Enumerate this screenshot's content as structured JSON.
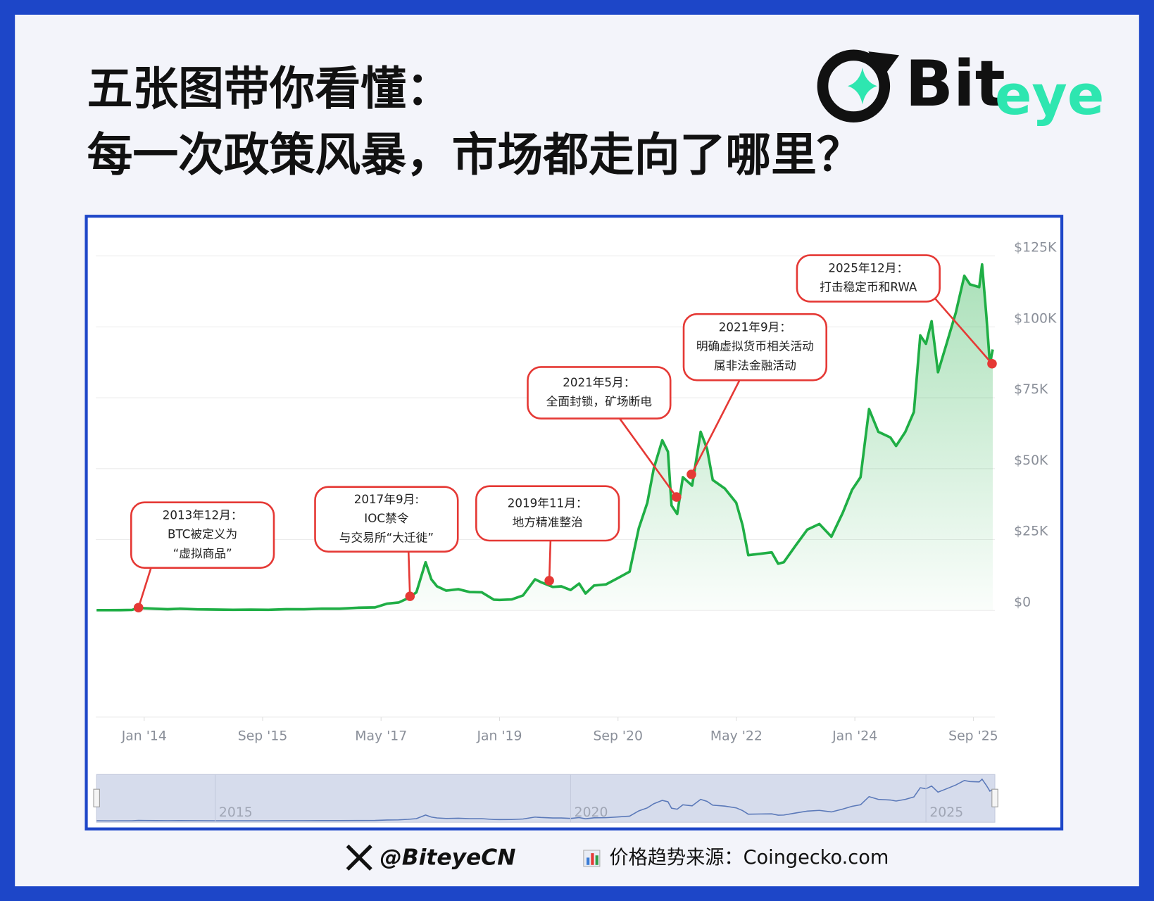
{
  "header": {
    "title": [
      "五张图带你看懂：",
      "每一次政策风暴，市场都走向了哪里？"
    ],
    "logo": [
      "Bit",
      "eye"
    ]
  },
  "chart_data": {
    "type": "line",
    "x": [
      2013.33,
      2013.5,
      2013.67,
      2013.83,
      2013.92,
      2014.0,
      2014.17,
      2014.33,
      2014.5,
      2014.75,
      2015.0,
      2015.25,
      2015.5,
      2015.75,
      2016.0,
      2016.25,
      2016.5,
      2016.75,
      2017.0,
      2017.25,
      2017.42,
      2017.58,
      2017.71,
      2017.83,
      2017.96,
      2018.04,
      2018.12,
      2018.25,
      2018.42,
      2018.58,
      2018.75,
      2018.92,
      2019.0,
      2019.17,
      2019.33,
      2019.5,
      2019.58,
      2019.75,
      2019.87,
      2020.0,
      2020.12,
      2020.21,
      2020.33,
      2020.5,
      2020.67,
      2020.83,
      2020.96,
      2021.08,
      2021.17,
      2021.29,
      2021.37,
      2021.42,
      2021.5,
      2021.58,
      2021.71,
      2021.83,
      2021.92,
      2022.0,
      2022.17,
      2022.33,
      2022.42,
      2022.5,
      2022.67,
      2022.83,
      2022.92,
      2023.0,
      2023.17,
      2023.33,
      2023.5,
      2023.67,
      2023.83,
      2023.96,
      2024.08,
      2024.2,
      2024.33,
      2024.5,
      2024.58,
      2024.71,
      2024.83,
      2024.92,
      2025.0,
      2025.08,
      2025.17,
      2025.29,
      2025.42,
      2025.54,
      2025.62,
      2025.75,
      2025.79,
      2025.85,
      2025.9,
      2025.94
    ],
    "series": [
      {
        "color": "#1fae45",
        "values": [
          110,
          95,
          130,
          200,
          1000,
          800,
          600,
          450,
          620,
          380,
          300,
          230,
          280,
          240,
          430,
          420,
          650,
          610,
          960,
          1100,
          2400,
          2800,
          4300,
          6400,
          17000,
          11000,
          8500,
          7000,
          7500,
          6500,
          6400,
          3800,
          3700,
          3900,
          5300,
          11000,
          10000,
          8300,
          8500,
          7200,
          9500,
          6000,
          8800,
          9200,
          11500,
          13700,
          29000,
          38000,
          50000,
          60000,
          56000,
          37000,
          34000,
          47000,
          44000,
          63000,
          57000,
          46000,
          43000,
          38000,
          30000,
          19500,
          20000,
          20500,
          16500,
          17000,
          23000,
          28500,
          30500,
          26000,
          34500,
          42500,
          47000,
          71000,
          63000,
          61000,
          58000,
          63000,
          70000,
          97000,
          94000,
          102000,
          84000,
          94000,
          105000,
          118000,
          115000,
          114000,
          122000,
          104000,
          87000,
          92000
        ]
      }
    ],
    "xlim": [
      2013.32,
      2025.97
    ],
    "xticks": [
      {
        "value": 2014.0,
        "label": "Jan '14"
      },
      {
        "value": 2015.667,
        "label": "Sep '15"
      },
      {
        "value": 2017.333,
        "label": "May '17"
      },
      {
        "value": 2019.0,
        "label": "Jan '19"
      },
      {
        "value": 2020.667,
        "label": "Sep '20"
      },
      {
        "value": 2022.333,
        "label": "May '22"
      },
      {
        "value": 2024.0,
        "label": "Jan '24"
      },
      {
        "value": 2025.667,
        "label": "Sep '25"
      }
    ],
    "ylim": [
      0,
      125000
    ],
    "yticks": [
      {
        "value": 0,
        "label": "$0"
      },
      {
        "value": 25000,
        "label": "$25K"
      },
      {
        "value": 50000,
        "label": "$50K"
      },
      {
        "value": 75000,
        "label": "$75K"
      },
      {
        "value": 100000,
        "label": "$100K"
      },
      {
        "value": 125000,
        "label": "$125K"
      }
    ],
    "grid": true,
    "marker_color": "#e53935",
    "annotations": [
      {
        "x": 2013.92,
        "y": 1000,
        "lines": [
          "2013年12月：",
          "BTC被定义为",
          "“虚拟商品”"
        ]
      },
      {
        "x": 2017.74,
        "y": 5000,
        "lines": [
          "2017年9月:",
          "IOC禁令",
          "与交易所“大迁徙”"
        ]
      },
      {
        "x": 2019.7,
        "y": 10500,
        "lines": [
          "2019年11月：",
          "地方精准整治"
        ]
      },
      {
        "x": 2021.49,
        "y": 40000,
        "lines": [
          "2021年5月：",
          "全面封锁，矿场断电"
        ]
      },
      {
        "x": 2021.7,
        "y": 48000,
        "lines": [
          "2021年9月：",
          "明确虚拟货币相关活动",
          "属非法金融活动"
        ]
      },
      {
        "x": 2025.93,
        "y": 87000,
        "lines": [
          "2025年12月：",
          "打击稳定币和RWA"
        ]
      }
    ],
    "navigator": {
      "ticks": [
        2015,
        2020,
        2025
      ],
      "color": "#5b79b9"
    }
  },
  "footer": {
    "handle": "@BiteyeCN",
    "source": "价格趋势来源：Coingecko.com"
  }
}
